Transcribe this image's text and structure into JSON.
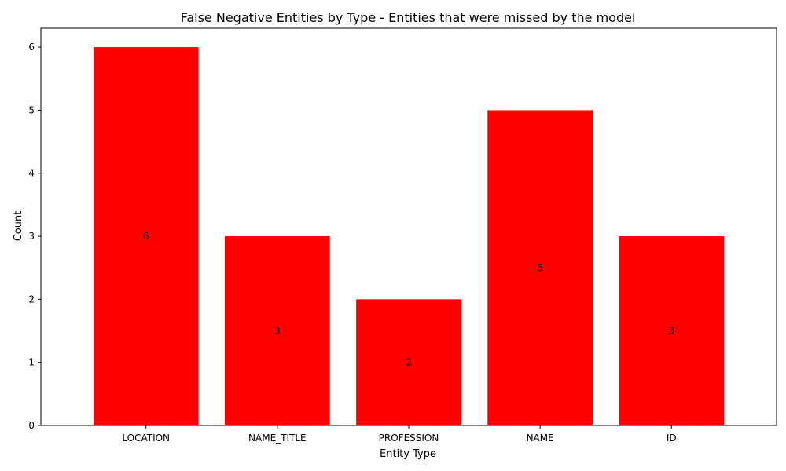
{
  "chart_data": {
    "type": "bar",
    "title": "False Negative Entities by Type - Entities that were missed by the model",
    "xlabel": "Entity Type",
    "ylabel": "Count",
    "categories": [
      "LOCATION",
      "NAME_TITLE",
      "PROFESSION",
      "NAME",
      "ID"
    ],
    "values": [
      6,
      3,
      2,
      5,
      3
    ],
    "ylim": [
      0,
      6.3
    ],
    "yticks": [
      0,
      1,
      2,
      3,
      4,
      5,
      6
    ],
    "bar_color": "#ff0000",
    "grid": false,
    "data_labels": true
  }
}
